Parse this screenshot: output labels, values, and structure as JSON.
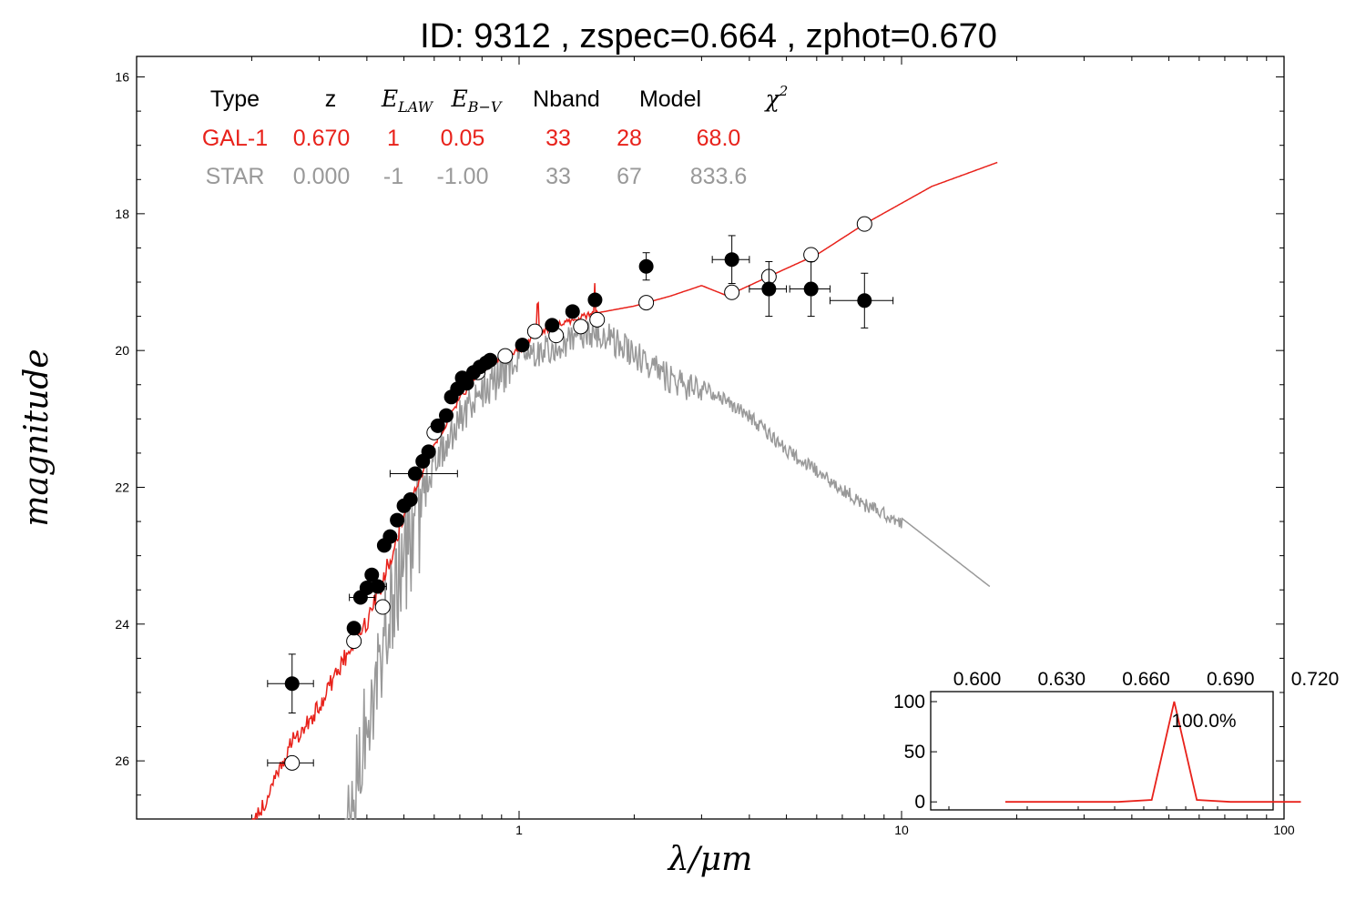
{
  "title": "ID:  9312  , zspec=0.664 , zphot=0.670",
  "colors": {
    "galaxy": "#e8221b",
    "star": "#999999",
    "points": "#000000"
  },
  "legend_table": {
    "headers": [
      {
        "text": "Type",
        "math": false
      },
      {
        "text": "z",
        "math": false
      },
      {
        "text": "E",
        "sub": "LAW",
        "math": true
      },
      {
        "text": "E",
        "sub": "B−V",
        "math": true
      },
      {
        "text": "Nband",
        "math": false
      },
      {
        "text": "Model",
        "math": false
      },
      {
        "text": "χ",
        "sup": "2",
        "math": true
      }
    ],
    "rows": [
      {
        "cells": [
          "GAL-1",
          "0.670",
          "1",
          "0.05",
          "33",
          "28",
          "68.0"
        ],
        "color": "galaxy"
      },
      {
        "cells": [
          "STAR",
          "0.000",
          "-1",
          "-1.00",
          "33",
          "67",
          "833.6"
        ],
        "color": "star"
      }
    ]
  },
  "chart_data": [
    {
      "type": "scatter",
      "xlabel": "λ/μm",
      "ylabel": "magnitude",
      "xscale": "log",
      "xlim": [
        0.1,
        100
      ],
      "ylim": [
        26.85,
        15.7
      ],
      "x_ticks": [
        "1",
        "10",
        "100"
      ],
      "y_ticks": [
        "16",
        "18",
        "20",
        "22",
        "24",
        "26"
      ],
      "observed_points": [
        {
          "x": 0.255,
          "y": 24.87,
          "xerr": [
            0.22,
            0.29
          ],
          "yerr": 0.43
        },
        {
          "x": 0.37,
          "y": 24.06,
          "yerr": 0.08
        },
        {
          "x": 0.385,
          "y": 23.61,
          "xerr": [
            0.36,
            0.42
          ]
        },
        {
          "x": 0.4,
          "y": 23.47
        },
        {
          "x": 0.412,
          "y": 23.28
        },
        {
          "x": 0.427,
          "y": 23.45,
          "xerr": [
            0.41,
            0.45
          ]
        },
        {
          "x": 0.444,
          "y": 22.85
        },
        {
          "x": 0.46,
          "y": 22.72
        },
        {
          "x": 0.48,
          "y": 22.48
        },
        {
          "x": 0.5,
          "y": 22.27
        },
        {
          "x": 0.52,
          "y": 22.18
        },
        {
          "x": 0.535,
          "y": 21.8,
          "xerr": [
            0.46,
            0.69
          ]
        },
        {
          "x": 0.56,
          "y": 21.62
        },
        {
          "x": 0.58,
          "y": 21.48
        },
        {
          "x": 0.613,
          "y": 21.1
        },
        {
          "x": 0.645,
          "y": 20.95
        },
        {
          "x": 0.665,
          "y": 20.68
        },
        {
          "x": 0.69,
          "y": 20.56
        },
        {
          "x": 0.71,
          "y": 20.4
        },
        {
          "x": 0.73,
          "y": 20.48
        },
        {
          "x": 0.76,
          "y": 20.32
        },
        {
          "x": 0.79,
          "y": 20.24
        },
        {
          "x": 0.82,
          "y": 20.18
        },
        {
          "x": 0.84,
          "y": 20.14
        },
        {
          "x": 1.02,
          "y": 19.92
        },
        {
          "x": 1.22,
          "y": 19.63
        },
        {
          "x": 1.38,
          "y": 19.43
        },
        {
          "x": 1.58,
          "y": 19.26
        },
        {
          "x": 2.15,
          "y": 18.77,
          "yerr": 0.2
        },
        {
          "x": 3.6,
          "y": 18.67,
          "xerr": [
            3.2,
            4.0
          ],
          "yerr": 0.35
        },
        {
          "x": 4.5,
          "y": 19.1,
          "xerr": [
            4.0,
            5.0
          ],
          "yerr": 0.4
        },
        {
          "x": 5.8,
          "y": 19.1,
          "xerr": [
            5.1,
            6.5
          ],
          "yerr": 0.4
        },
        {
          "x": 8.0,
          "y": 19.27,
          "xerr": [
            6.5,
            9.5
          ],
          "yerr": 0.4
        }
      ],
      "model_points_galaxy": [
        {
          "x": 0.255,
          "y": 26.03,
          "xerr": [
            0.22,
            0.29
          ]
        },
        {
          "x": 0.37,
          "y": 24.25
        },
        {
          "x": 0.44,
          "y": 23.75
        },
        {
          "x": 0.6,
          "y": 21.2
        },
        {
          "x": 0.78,
          "y": 20.32
        },
        {
          "x": 0.92,
          "y": 20.08
        },
        {
          "x": 1.1,
          "y": 19.72
        },
        {
          "x": 1.25,
          "y": 19.78
        },
        {
          "x": 1.45,
          "y": 19.65
        },
        {
          "x": 1.6,
          "y": 19.55
        },
        {
          "x": 2.15,
          "y": 19.3
        },
        {
          "x": 3.6,
          "y": 19.15
        },
        {
          "x": 4.5,
          "y": 18.92
        },
        {
          "x": 5.8,
          "y": 18.6
        },
        {
          "x": 8.0,
          "y": 18.15
        }
      ]
    },
    {
      "type": "line",
      "xlim": [
        0.6,
        0.72
      ],
      "x_ticks": [
        "0.600",
        "0.630",
        "0.660",
        "0.690",
        "0.720"
      ],
      "y_ticks": [
        "0",
        "50",
        "100"
      ],
      "ylim": [
        -8,
        110
      ],
      "x": [
        0.61,
        0.625,
        0.65,
        0.662,
        0.67,
        0.678,
        0.69,
        0.715
      ],
      "y": [
        0,
        0,
        0,
        2,
        100,
        2,
        0,
        0
      ],
      "annotation": "100.0%"
    }
  ]
}
